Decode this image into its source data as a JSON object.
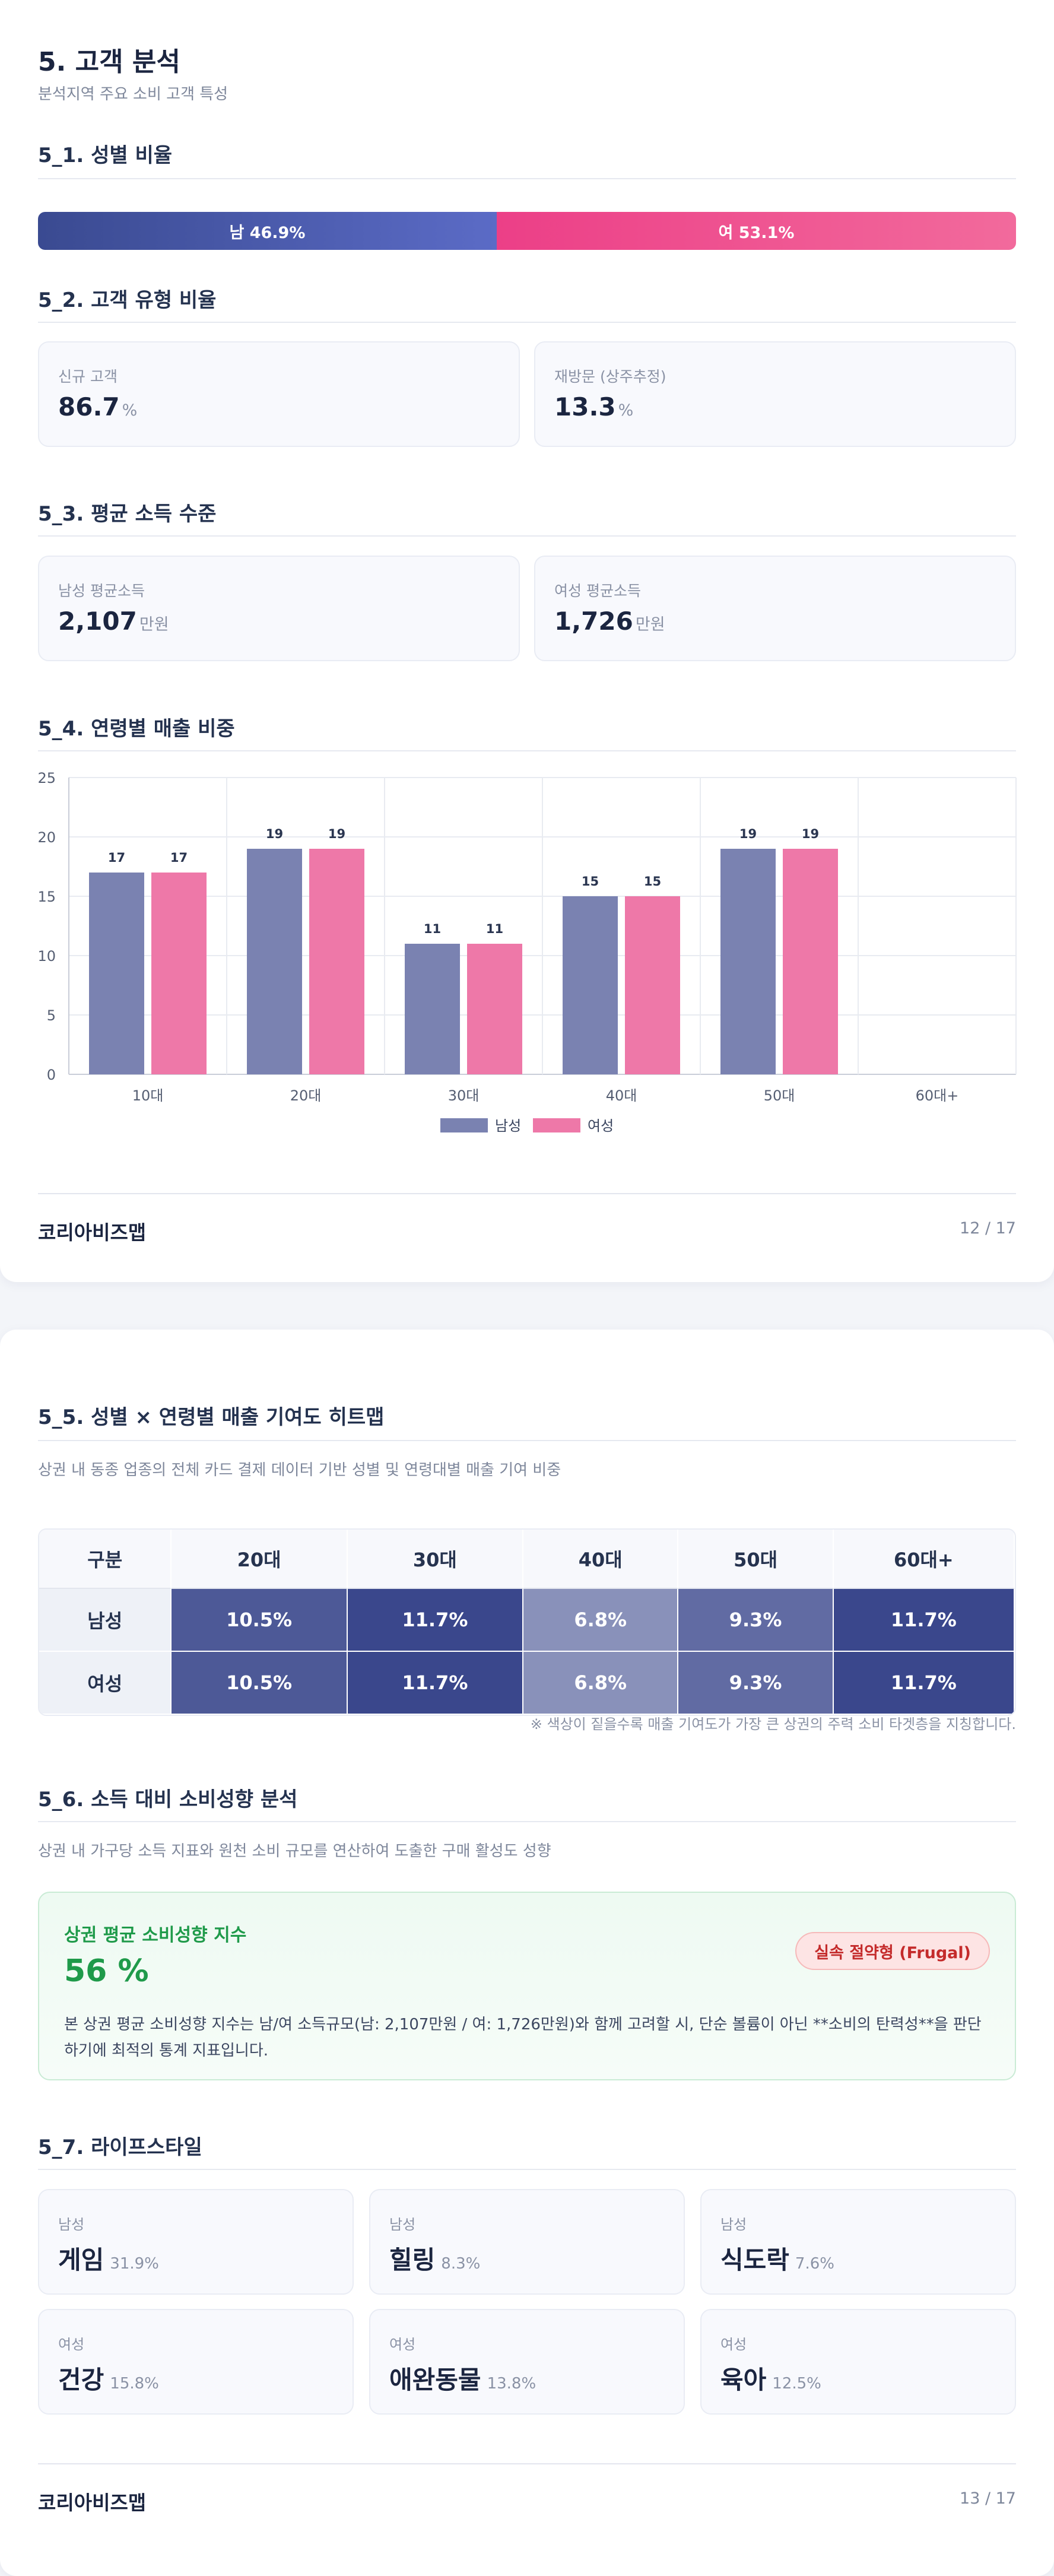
{
  "page1": {
    "title": "5. 고객 분석",
    "subtitle": "분석지역 주요 소비 고객 특성",
    "gender": {
      "title": "5_1. 성별 비율",
      "male_label": "남 46.9%",
      "female_label": "여 53.1%",
      "male_pct": 46.9,
      "female_pct": 53.1,
      "male_color": "#3a4a91",
      "female_color": "#ec3f87"
    },
    "customer_type": {
      "title": "5_2. 고객 유형 비율",
      "new": {
        "label": "신규 고객",
        "value": "86.7",
        "unit": "%"
      },
      "returning": {
        "label": "재방문 (상주추정)",
        "value": "13.3",
        "unit": "%"
      }
    },
    "income": {
      "title": "5_3. 평균 소득 수준",
      "male": {
        "label": "남성 평균소득",
        "value": "2,107",
        "unit": "만원"
      },
      "female": {
        "label": "여성 평균소득",
        "value": "1,726",
        "unit": "만원"
      }
    },
    "age_chart_title": "5_4. 연령별 매출 비중",
    "footer": {
      "brand": "코리아비즈맵",
      "page": "12 / 17"
    }
  },
  "chart_data": {
    "type": "bar",
    "title": "",
    "categories": [
      "10대",
      "20대",
      "30대",
      "40대",
      "50대",
      "60대+"
    ],
    "series": [
      {
        "name": "남성",
        "values": [
          17,
          19,
          11,
          15,
          19,
          0
        ],
        "color": "#7a82b1"
      },
      {
        "name": "여성",
        "values": [
          17,
          19,
          11,
          15,
          19,
          0
        ],
        "color": "#ee78a8"
      }
    ],
    "ylim": [
      0,
      25
    ],
    "yticks": [
      0,
      5,
      10,
      15,
      20,
      25
    ],
    "grid": true,
    "legend": "bottom"
  },
  "page2": {
    "heatmap": {
      "title": "5_5. 성별 × 연령별 매출 기여도 히트맵",
      "description": "상권 내 동종 업종의 전체 카드 결제 데이터 기반 성별 및 연령대별 매출 기여 비중",
      "headers": [
        "구분",
        "20대",
        "30대",
        "40대",
        "50대",
        "60대+"
      ],
      "rows": [
        {
          "label": "남성",
          "cells": [
            "10.5%",
            "11.7%",
            "6.8%",
            "9.3%",
            "11.7%"
          ],
          "values": [
            10.5,
            11.7,
            6.8,
            9.3,
            11.7
          ]
        },
        {
          "label": "여성",
          "cells": [
            "10.5%",
            "11.7%",
            "6.8%",
            "9.3%",
            "11.7%"
          ],
          "values": [
            10.5,
            11.7,
            6.8,
            9.3,
            11.7
          ]
        }
      ],
      "note": "※ 색상이 짙을수록 매출 기여도가 가장 큰 상권의 주력 소비 타겟층을 지칭합니다."
    },
    "spending": {
      "title": "5_6. 소득 대비 소비성향 분석",
      "description": "상권 내 가구당 소득 지표와 원천 소비 규모를 연산하여 도출한 구매 활성도 성향",
      "card_title": "상권 평균 소비성향 지수",
      "value": "56 %",
      "badge": "실속 절약형 (Frugal)",
      "text": "본 상권 평균 소비성향 지수는 남/여 소득규모(남: 2,107만원 / 여: 1,726만원)와 함께 고려할 시, 단순 볼륨이 아닌 **소비의 탄력성**을 판단하기에 최적의 통계 지표입니다."
    },
    "lifestyle": {
      "title": "5_7. 라이프스타일",
      "items": [
        {
          "gender": "남성",
          "name": "게임",
          "pct": "31.9%"
        },
        {
          "gender": "남성",
          "name": "힐링",
          "pct": "8.3%"
        },
        {
          "gender": "남성",
          "name": "식도락",
          "pct": "7.6%"
        },
        {
          "gender": "여성",
          "name": "건강",
          "pct": "15.8%"
        },
        {
          "gender": "여성",
          "name": "애완동물",
          "pct": "13.8%"
        },
        {
          "gender": "여성",
          "name": "육아",
          "pct": "12.5%"
        }
      ]
    },
    "footer": {
      "brand": "코리아비즈맵",
      "page": "13 / 17"
    }
  }
}
